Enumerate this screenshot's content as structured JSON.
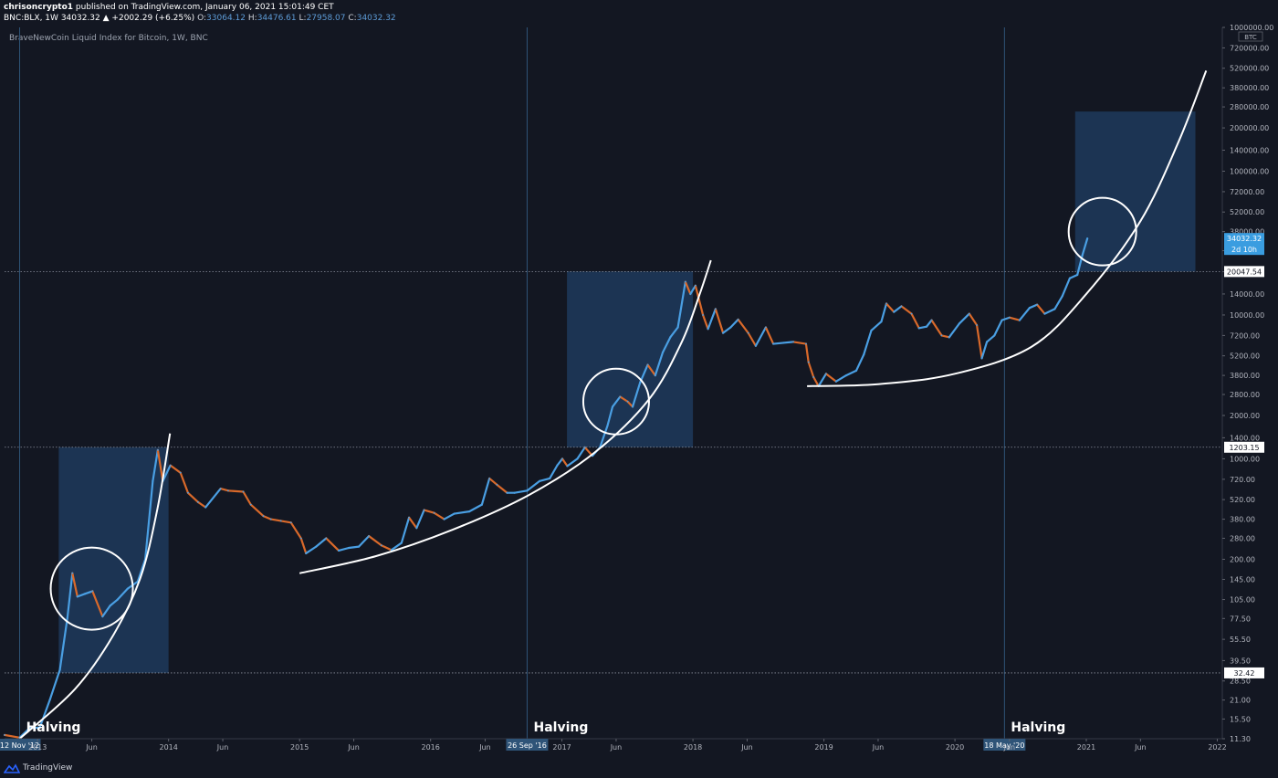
{
  "header": {
    "author": "chrisoncrypto1",
    "published_text": "published on TradingView.com, January 06, 2021 15:01:49 CET",
    "symbol": "BNC:BLX, 1W",
    "last_price": "34032.32",
    "change": "▲ +2002.29 (+6.25%)",
    "open_label": "O:",
    "open": "33064.12",
    "high_label": "H:",
    "high": "34476.61",
    "low_label": "L:",
    "low": "27958.07",
    "close_label": "C:",
    "close": "34032.32"
  },
  "legend": "BraveNewCoin Liquid Index for Bitcoin, 1W, BNC",
  "footer": {
    "brand": "TradingView"
  },
  "colors": {
    "background": "#131722",
    "up": "#4a9fe3",
    "down": "#d9692a",
    "box": "#1e3a5c",
    "label_bg": "#2f5478",
    "current_price_bg": "#3a9de0"
  },
  "chart_data": {
    "type": "line",
    "scale": "log",
    "ylim": [
      11.3,
      1000000
    ],
    "xlim": [
      "2012-10-01",
      "2022-01-15"
    ],
    "currency": "BTC",
    "y_ticks": [
      "1000000.00",
      "720000.00",
      "520000.00",
      "380000.00",
      "280000.00",
      "200000.00",
      "140000.00",
      "100000.00",
      "72000.00",
      "52000.00",
      "38000.00",
      "28000.00",
      "20000.00",
      "14000.00",
      "10000.00",
      "7200.00",
      "5200.00",
      "3800.00",
      "2800.00",
      "2000.00",
      "1400.00",
      "1000.00",
      "720.00",
      "520.00",
      "380.00",
      "280.00",
      "200.00",
      "145.00",
      "105.00",
      "77.50",
      "55.50",
      "39.50",
      "28.50",
      "21.00",
      "15.50",
      "11.30"
    ],
    "x_ticks": [
      {
        "label": "2013",
        "date": "2013-01-01"
      },
      {
        "label": "Jun",
        "date": "2013-06-01"
      },
      {
        "label": "2014",
        "date": "2014-01-01"
      },
      {
        "label": "Jun",
        "date": "2014-06-01"
      },
      {
        "label": "2015",
        "date": "2015-01-01"
      },
      {
        "label": "Jun",
        "date": "2015-06-01"
      },
      {
        "label": "2016",
        "date": "2016-01-01"
      },
      {
        "label": "Jun",
        "date": "2016-06-01"
      },
      {
        "label": "2017",
        "date": "2017-01-01"
      },
      {
        "label": "Jun",
        "date": "2017-06-01"
      },
      {
        "label": "2018",
        "date": "2018-01-01"
      },
      {
        "label": "Jun",
        "date": "2018-06-01"
      },
      {
        "label": "2019",
        "date": "2019-01-01"
      },
      {
        "label": "Jun",
        "date": "2019-06-01"
      },
      {
        "label": "2020",
        "date": "2020-01-01"
      },
      {
        "label": "Jun",
        "date": "2020-06-01"
      },
      {
        "label": "2021",
        "date": "2021-01-01"
      },
      {
        "label": "Jun",
        "date": "2021-06-01"
      },
      {
        "label": "2022",
        "date": "2022-01-01"
      }
    ],
    "halvings": [
      {
        "date": "2012-11-12",
        "label": "12 Nov '12",
        "text": "Halving"
      },
      {
        "date": "2016-09-26",
        "label": "26 Sep '16",
        "text": "Halving"
      },
      {
        "date": "2020-05-18",
        "label": "18 May '20",
        "text": "Halving"
      }
    ],
    "price_lines": [
      {
        "value": 20047.54,
        "label": "20047.54"
      },
      {
        "value": 1203.15,
        "label": "1203.15"
      },
      {
        "value": 32.42,
        "label": "32.42"
      }
    ],
    "current_price": {
      "value": 34032.32,
      "label": "34032.32",
      "countdown": "2d 10h"
    },
    "boxes": [
      {
        "x0": "2013-03-01",
        "x1": "2014-01-01",
        "y0": 32.42,
        "y1": 1203.15
      },
      {
        "x0": "2017-01-15",
        "x1": "2018-01-01",
        "y0": 1203.15,
        "y1": 20047.54
      },
      {
        "x0": "2020-12-01",
        "x1": "2021-11-01",
        "y0": 20047.54,
        "y1": 260000
      }
    ],
    "circles": [
      {
        "date": "2013-06-01",
        "value": 125
      },
      {
        "date": "2017-06-01",
        "value": 2500
      },
      {
        "date": "2021-02-15",
        "value": 38000
      }
    ],
    "series": [
      {
        "values": [
          [
            "2012-10-01",
            12
          ],
          [
            "2012-11-12",
            11.5
          ],
          [
            "2012-12-10",
            13.4
          ],
          [
            "2013-01-07",
            13.5
          ],
          [
            "2013-02-04",
            21
          ],
          [
            "2013-03-04",
            34
          ],
          [
            "2013-03-25",
            78
          ],
          [
            "2013-04-08",
            160
          ],
          [
            "2013-04-22",
            110
          ],
          [
            "2013-05-13",
            115
          ],
          [
            "2013-06-03",
            120
          ],
          [
            "2013-07-01",
            80
          ],
          [
            "2013-07-22",
            95
          ],
          [
            "2013-08-12",
            105
          ],
          [
            "2013-09-09",
            125
          ],
          [
            "2013-10-07",
            140
          ],
          [
            "2013-10-28",
            200
          ],
          [
            "2013-11-18",
            700
          ],
          [
            "2013-12-02",
            1150
          ],
          [
            "2013-12-16",
            700
          ],
          [
            "2014-01-06",
            900
          ],
          [
            "2014-02-03",
            800
          ],
          [
            "2014-02-24",
            580
          ],
          [
            "2014-03-24",
            500
          ],
          [
            "2014-04-14",
            460
          ],
          [
            "2014-05-26",
            620
          ],
          [
            "2014-06-16",
            600
          ],
          [
            "2014-07-28",
            590
          ],
          [
            "2014-08-18",
            480
          ],
          [
            "2014-09-22",
            400
          ],
          [
            "2014-10-13",
            380
          ],
          [
            "2014-11-10",
            370
          ],
          [
            "2014-12-08",
            360
          ],
          [
            "2015-01-05",
            280
          ],
          [
            "2015-01-19",
            220
          ],
          [
            "2015-02-16",
            245
          ],
          [
            "2015-03-16",
            280
          ],
          [
            "2015-04-20",
            230
          ],
          [
            "2015-05-18",
            240
          ],
          [
            "2015-06-15",
            245
          ],
          [
            "2015-07-13",
            290
          ],
          [
            "2015-08-17",
            250
          ],
          [
            "2015-09-14",
            232
          ],
          [
            "2015-10-12",
            260
          ],
          [
            "2015-11-02",
            390
          ],
          [
            "2015-11-23",
            330
          ],
          [
            "2015-12-14",
            440
          ],
          [
            "2016-01-11",
            420
          ],
          [
            "2016-02-08",
            380
          ],
          [
            "2016-03-07",
            415
          ],
          [
            "2016-04-18",
            430
          ],
          [
            "2016-05-23",
            480
          ],
          [
            "2016-06-13",
            730
          ],
          [
            "2016-07-04",
            660
          ],
          [
            "2016-08-01",
            580
          ],
          [
            "2016-08-22",
            580
          ],
          [
            "2016-09-26",
            600
          ],
          [
            "2016-10-31",
            700
          ],
          [
            "2016-11-28",
            730
          ],
          [
            "2016-12-19",
            900
          ],
          [
            "2017-01-02",
            1000
          ],
          [
            "2017-01-16",
            890
          ],
          [
            "2017-02-13",
            1000
          ],
          [
            "2017-03-06",
            1200
          ],
          [
            "2017-03-27",
            1050
          ],
          [
            "2017-04-17",
            1200
          ],
          [
            "2017-05-08",
            1700
          ],
          [
            "2017-05-22",
            2300
          ],
          [
            "2017-06-12",
            2700
          ],
          [
            "2017-07-03",
            2500
          ],
          [
            "2017-07-17",
            2300
          ],
          [
            "2017-08-07",
            3400
          ],
          [
            "2017-08-28",
            4500
          ],
          [
            "2017-09-18",
            3800
          ],
          [
            "2017-10-09",
            5500
          ],
          [
            "2017-10-30",
            7000
          ],
          [
            "2017-11-20",
            8200
          ],
          [
            "2017-12-11",
            17000
          ],
          [
            "2017-12-25",
            14000
          ],
          [
            "2018-01-08",
            16000
          ],
          [
            "2018-01-29",
            10000
          ],
          [
            "2018-02-12",
            8000
          ],
          [
            "2018-03-05",
            11000
          ],
          [
            "2018-03-26",
            7500
          ],
          [
            "2018-04-16",
            8200
          ],
          [
            "2018-05-07",
            9300
          ],
          [
            "2018-06-04",
            7500
          ],
          [
            "2018-06-25",
            6100
          ],
          [
            "2018-07-23",
            8200
          ],
          [
            "2018-08-13",
            6300
          ],
          [
            "2018-09-10",
            6400
          ],
          [
            "2018-10-08",
            6500
          ],
          [
            "2018-11-12",
            6300
          ],
          [
            "2018-11-19",
            4700
          ],
          [
            "2018-12-03",
            3700
          ],
          [
            "2018-12-17",
            3200
          ],
          [
            "2019-01-07",
            3900
          ],
          [
            "2019-02-04",
            3450
          ],
          [
            "2019-03-04",
            3800
          ],
          [
            "2019-04-01",
            4100
          ],
          [
            "2019-04-22",
            5300
          ],
          [
            "2019-05-13",
            7800
          ],
          [
            "2019-06-10",
            9000
          ],
          [
            "2019-06-24",
            12000
          ],
          [
            "2019-07-15",
            10500
          ],
          [
            "2019-08-05",
            11500
          ],
          [
            "2019-09-02",
            10200
          ],
          [
            "2019-09-23",
            8100
          ],
          [
            "2019-10-14",
            8300
          ],
          [
            "2019-10-28",
            9200
          ],
          [
            "2019-11-25",
            7200
          ],
          [
            "2019-12-16",
            7000
          ],
          [
            "2020-01-13",
            8700
          ],
          [
            "2020-02-10",
            10200
          ],
          [
            "2020-03-02",
            8500
          ],
          [
            "2020-03-16",
            5000
          ],
          [
            "2020-03-30",
            6500
          ],
          [
            "2020-04-20",
            7200
          ],
          [
            "2020-05-11",
            9200
          ],
          [
            "2020-06-01",
            9600
          ],
          [
            "2020-06-29",
            9200
          ],
          [
            "2020-07-27",
            11200
          ],
          [
            "2020-08-17",
            11800
          ],
          [
            "2020-09-07",
            10200
          ],
          [
            "2020-10-05",
            11000
          ],
          [
            "2020-10-26",
            13500
          ],
          [
            "2020-11-16",
            18000
          ],
          [
            "2020-12-07",
            19000
          ],
          [
            "2020-12-21",
            26000
          ],
          [
            "2021-01-04",
            34032.32
          ]
        ]
      }
    ],
    "curves": [
      {
        "points": [
          [
            "2012-11-12",
            11.3
          ],
          [
            "2013-04-15",
            25
          ],
          [
            "2013-08-01",
            60
          ],
          [
            "2013-10-15",
            150
          ],
          [
            "2013-12-01",
            450
          ],
          [
            "2014-01-05",
            1500
          ]
        ]
      },
      {
        "points": [
          [
            "2015-01-01",
            160
          ],
          [
            "2015-08-01",
            210
          ],
          [
            "2016-03-01",
            320
          ],
          [
            "2016-10-01",
            560
          ],
          [
            "2017-04-01",
            1100
          ],
          [
            "2017-09-01",
            2600
          ],
          [
            "2017-12-01",
            6500
          ],
          [
            "2018-01-20",
            14000
          ],
          [
            "2018-02-20",
            24000
          ]
        ]
      },
      {
        "points": [
          [
            "2018-11-15",
            3200
          ],
          [
            "2019-06-01",
            3300
          ],
          [
            "2020-01-01",
            3900
          ],
          [
            "2020-08-01",
            6000
          ],
          [
            "2021-01-01",
            14000
          ],
          [
            "2021-06-01",
            45000
          ],
          [
            "2021-09-15",
            160000
          ],
          [
            "2021-12-01",
            500000
          ]
        ]
      }
    ]
  }
}
